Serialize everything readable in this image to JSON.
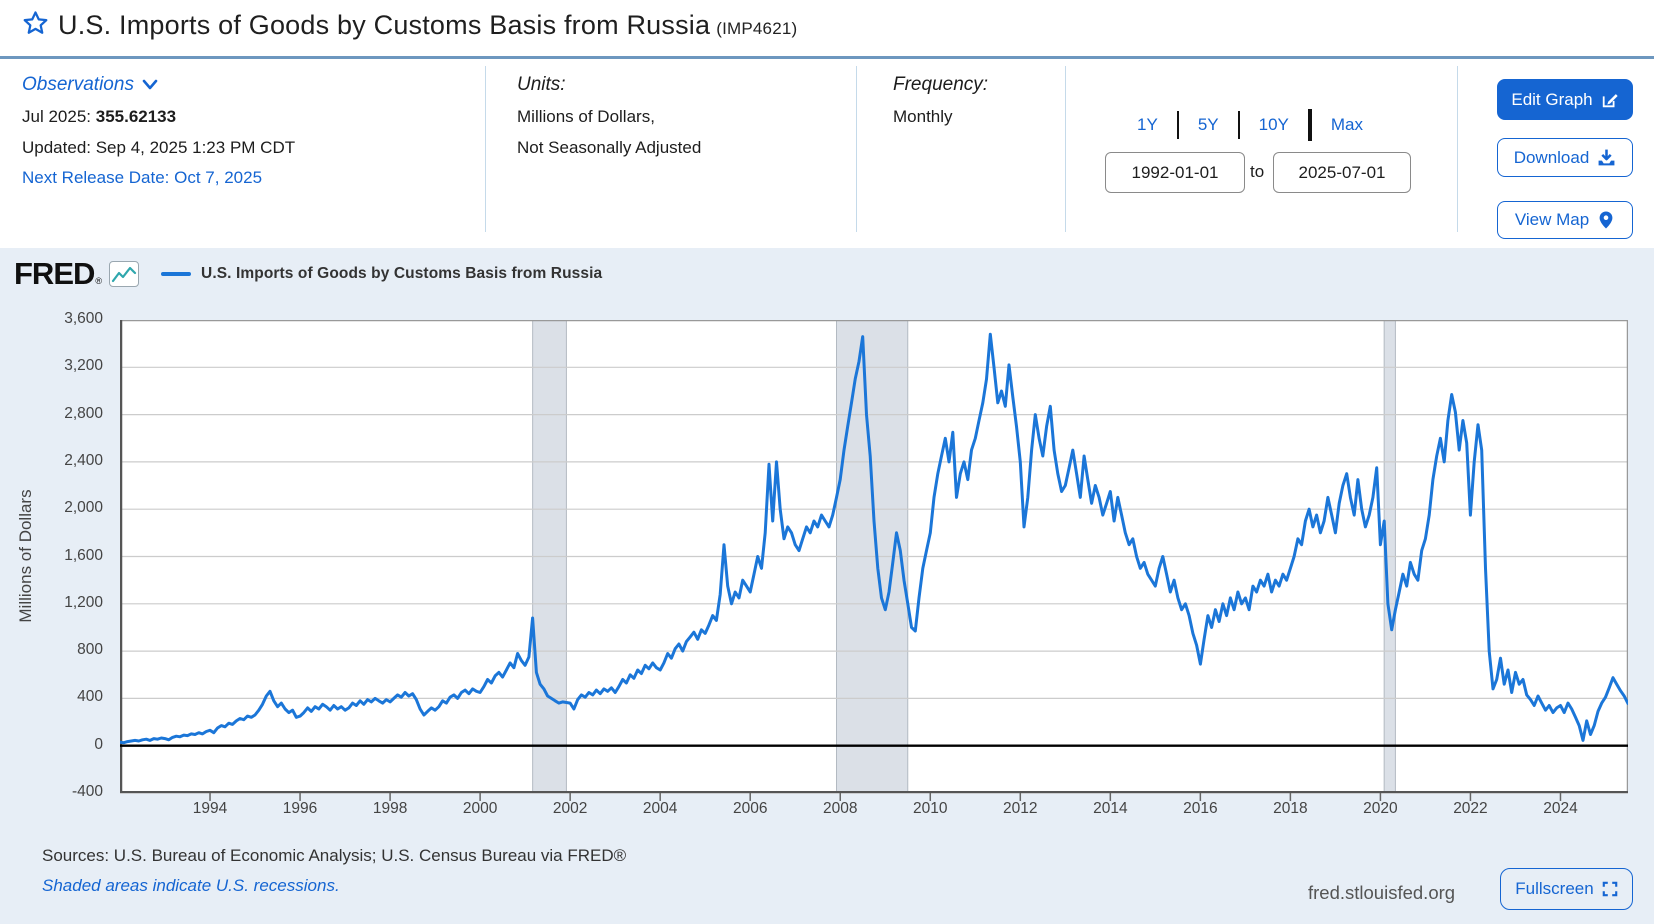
{
  "header": {
    "title": "U.S. Imports of Goods by Customs Basis from Russia",
    "series_id": "(IMP4621)"
  },
  "observations": {
    "label": "Observations",
    "date_label": "Jul 2025:",
    "value": "355.62133",
    "updated": "Updated: Sep 4, 2025 1:23 PM CDT",
    "next_release": "Next Release Date: Oct 7, 2025"
  },
  "units": {
    "label": "Units:",
    "line1": "Millions of Dollars,",
    "line2": "Not Seasonally Adjusted"
  },
  "frequency": {
    "label": "Frequency:",
    "value": "Monthly"
  },
  "range": {
    "presets": [
      "1Y",
      "5Y",
      "10Y",
      "Max"
    ],
    "start": "1992-01-01",
    "to_label": "to",
    "end": "2025-07-01"
  },
  "actions": {
    "edit_graph": "Edit Graph",
    "download": "Download",
    "view_map": "View Map"
  },
  "brand": {
    "name": "FRED",
    "reg": "®"
  },
  "legend": {
    "label": "U.S. Imports of Goods by Customs Basis from Russia"
  },
  "footer": {
    "sources": "Sources: U.S. Bureau of Economic Analysis; U.S. Census Bureau via FRED®",
    "recessions_note": "Shaded areas indicate U.S. recessions.",
    "site": "fred.stlouisfed.org",
    "fullscreen": "Fullscreen"
  },
  "colors": {
    "accent": "#1565d2",
    "line": "#1b76d8",
    "chart_bg": "#e7eef6",
    "recession_band": "#dbe0e7",
    "grid": "#cccccc",
    "zero_line": "#000000"
  },
  "chart_data": {
    "type": "line",
    "title": "U.S. Imports of Goods by Customs Basis from Russia",
    "series_id": "IMP4621",
    "ylabel": "Millions of Dollars",
    "frequency": "Monthly",
    "x_start": 1992.0,
    "x_end": 2025.5,
    "ylim": [
      -400,
      3600
    ],
    "y_tick_values": [
      3600,
      3200,
      2800,
      2400,
      2000,
      1600,
      1200,
      800,
      400,
      0,
      -400
    ],
    "y_tick_labels": [
      "3,600",
      "3,200",
      "2,800",
      "2,400",
      "2,000",
      "1,600",
      "1,200",
      "800",
      "400",
      "0",
      "-400"
    ],
    "x_ticks": [
      1994,
      1996,
      1998,
      2000,
      2002,
      2004,
      2006,
      2008,
      2010,
      2012,
      2014,
      2016,
      2018,
      2020,
      2022,
      2024
    ],
    "grid": true,
    "legend_position": "top-left",
    "recessions": [
      [
        2001.167,
        2001.917
      ],
      [
        2007.917,
        2009.5
      ],
      [
        2020.083,
        2020.333
      ]
    ],
    "monthly_values": [
      30,
      25,
      35,
      40,
      45,
      40,
      50,
      55,
      45,
      60,
      55,
      65,
      60,
      50,
      70,
      80,
      75,
      90,
      85,
      100,
      95,
      110,
      100,
      120,
      130,
      110,
      150,
      170,
      160,
      190,
      180,
      210,
      230,
      220,
      250,
      240,
      260,
      300,
      350,
      420,
      460,
      380,
      330,
      360,
      310,
      280,
      300,
      240,
      250,
      280,
      320,
      290,
      330,
      310,
      350,
      330,
      300,
      340,
      310,
      330,
      300,
      320,
      360,
      340,
      380,
      350,
      390,
      370,
      400,
      380,
      360,
      390,
      370,
      400,
      430,
      410,
      450,
      420,
      440,
      390,
      310,
      260,
      290,
      320,
      300,
      330,
      380,
      360,
      410,
      430,
      400,
      450,
      470,
      440,
      480,
      460,
      450,
      500,
      560,
      530,
      590,
      620,
      580,
      640,
      700,
      660,
      780,
      720,
      680,
      750,
      1080,
      620,
      520,
      480,
      420,
      400,
      380,
      360,
      370,
      365,
      360,
      310,
      390,
      430,
      410,
      450,
      430,
      470,
      440,
      480,
      460,
      490,
      450,
      500,
      560,
      530,
      600,
      570,
      640,
      610,
      680,
      650,
      700,
      660,
      640,
      700,
      780,
      740,
      820,
      860,
      800,
      880,
      920,
      960,
      900,
      980,
      950,
      1020,
      1100,
      1060,
      1280,
      1700,
      1350,
      1200,
      1300,
      1250,
      1400,
      1350,
      1300,
      1450,
      1600,
      1500,
      1800,
      2380,
      1900,
      2400,
      2000,
      1750,
      1850,
      1800,
      1700,
      1650,
      1750,
      1850,
      1800,
      1900,
      1850,
      1950,
      1900,
      1850,
      1950,
      2100,
      2250,
      2500,
      2700,
      2900,
      3100,
      3250,
      3460,
      2800,
      2450,
      1900,
      1500,
      1250,
      1150,
      1300,
      1550,
      1800,
      1650,
      1400,
      1200,
      1000,
      970,
      1250,
      1500,
      1650,
      1800,
      2100,
      2300,
      2450,
      2600,
      2400,
      2650,
      2100,
      2300,
      2400,
      2250,
      2500,
      2600,
      2750,
      2900,
      3100,
      3480,
      3200,
      2900,
      3000,
      2870,
      3220,
      2950,
      2700,
      2400,
      1850,
      2100,
      2500,
      2800,
      2600,
      2450,
      2700,
      2870,
      2500,
      2300,
      2150,
      2200,
      2350,
      2500,
      2300,
      2100,
      2450,
      2250,
      2050,
      2200,
      2100,
      1950,
      2050,
      2150,
      1900,
      2100,
      1950,
      1800,
      1700,
      1750,
      1600,
      1500,
      1550,
      1450,
      1400,
      1350,
      1500,
      1600,
      1450,
      1300,
      1400,
      1250,
      1150,
      1200,
      1100,
      950,
      850,
      690,
      900,
      1100,
      1000,
      1150,
      1050,
      1200,
      1100,
      1250,
      1150,
      1300,
      1200,
      1250,
      1150,
      1350,
      1300,
      1400,
      1350,
      1450,
      1300,
      1400,
      1350,
      1450,
      1400,
      1500,
      1600,
      1750,
      1700,
      1900,
      2000,
      1850,
      1950,
      1800,
      1900,
      2100,
      1950,
      1800,
      2050,
      2200,
      2300,
      2100,
      1950,
      2250,
      2000,
      1850,
      1950,
      2100,
      2350,
      1700,
      1900,
      1200,
      980,
      1150,
      1300,
      1450,
      1350,
      1550,
      1450,
      1400,
      1650,
      1750,
      1950,
      2250,
      2450,
      2600,
      2400,
      2750,
      2970,
      2820,
      2500,
      2750,
      2560,
      1950,
      2400,
      2715,
      2500,
      1500,
      800,
      480,
      560,
      740,
      520,
      640,
      450,
      620,
      520,
      560,
      430,
      390,
      340,
      420,
      360,
      300,
      340,
      280,
      320,
      340,
      280,
      360,
      310,
      240,
      170,
      45,
      210,
      95,
      170,
      290,
      360,
      410,
      490,
      575,
      520,
      465,
      420,
      355.62
    ]
  }
}
